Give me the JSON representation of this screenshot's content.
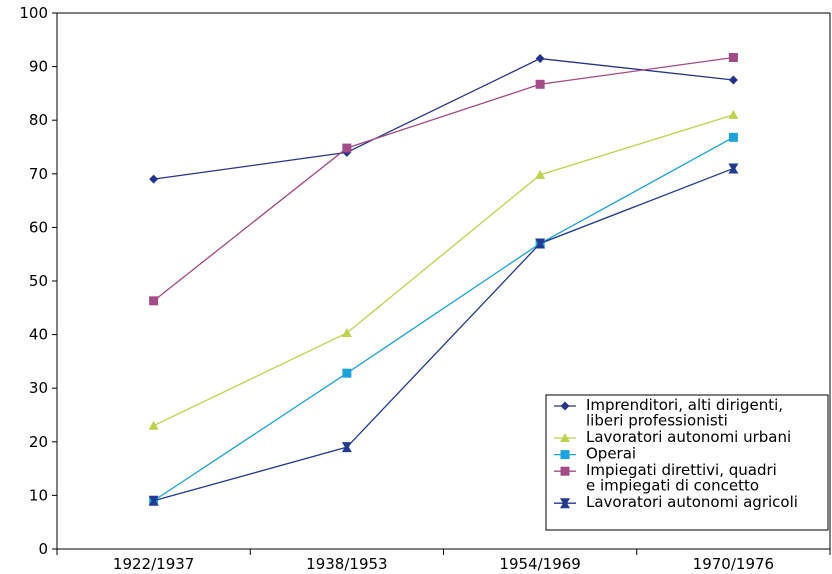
{
  "chart_data": {
    "type": "line",
    "title": "",
    "xlabel": "",
    "ylabel": "",
    "categories": [
      "1922/1937",
      "1938/1953",
      "1954/1969",
      "1970/1976"
    ],
    "ylim": [
      0,
      100
    ],
    "yticks": [
      0,
      10,
      20,
      30,
      40,
      50,
      60,
      70,
      80,
      90,
      100
    ],
    "grid": false,
    "legend_position": "bottom-right",
    "series": [
      {
        "name": "Imprenditori, alti dirigenti, liberi professionisti",
        "legend_lines": [
          "Imprenditori, alti dirigenti,",
          "liberi professionisti"
        ],
        "color": "#27348b",
        "marker": "diamond",
        "values": [
          69,
          74,
          91.5,
          87.5
        ]
      },
      {
        "name": "Lavoratori autonomi urbani",
        "legend_lines": [
          "Lavoratori autonomi urbani"
        ],
        "color": "#bcd34a",
        "marker": "triangle",
        "values": [
          23,
          40.3,
          69.8,
          81
        ]
      },
      {
        "name": "Operai",
        "legend_lines": [
          "Operai"
        ],
        "color": "#1aa3dc",
        "marker": "square",
        "values": [
          9,
          32.8,
          57,
          76.8
        ]
      },
      {
        "name": "Impiegati direttivi, quadri e impiegati di concetto",
        "legend_lines": [
          "Impiegati direttivi, quadri",
          "e impiegati di concetto"
        ],
        "color": "#a24b86",
        "marker": "square",
        "values": [
          46.3,
          74.8,
          86.7,
          91.7
        ]
      },
      {
        "name": "Lavoratori autonomi agricoli",
        "legend_lines": [
          "Lavoratori autonomi agricoli"
        ],
        "color": "#223a92",
        "marker": "bowtie",
        "values": [
          9,
          19,
          57,
          71
        ]
      }
    ]
  }
}
